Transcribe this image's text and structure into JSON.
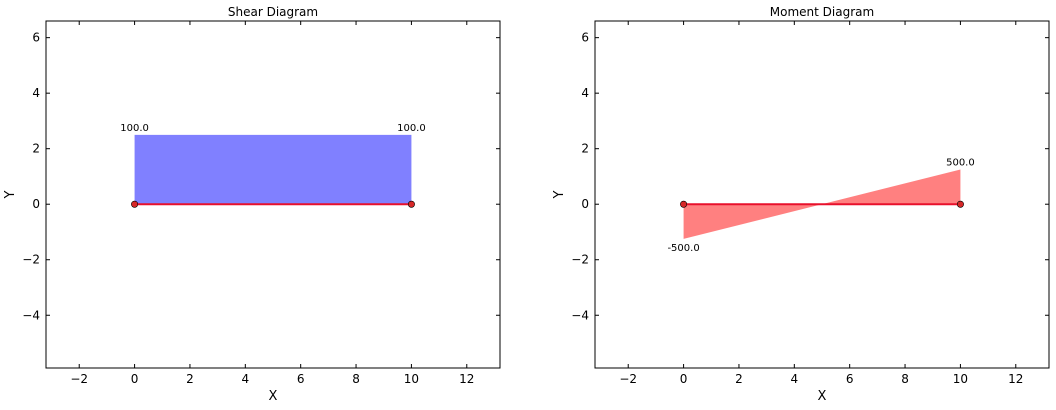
{
  "chart_data": [
    {
      "type": "area",
      "title": "Shear Diagram",
      "xlabel": "X",
      "ylabel": "Y",
      "xlim": [
        -3.2,
        13.2
      ],
      "ylim": [
        -5.9,
        6.6
      ],
      "xticks": [
        -2,
        0,
        2,
        4,
        6,
        8,
        10,
        12
      ],
      "yticks": [
        -4,
        -2,
        0,
        2,
        4,
        6
      ],
      "xtick_labels": [
        "−2",
        "0",
        "2",
        "4",
        "6",
        "8",
        "10",
        "12"
      ],
      "ytick_labels": [
        "−4",
        "−2",
        "0",
        "2",
        "4",
        "6"
      ],
      "grid": false,
      "fill_color": "#8080ff",
      "beam_color": "#e8102c",
      "node_color": "#d62728",
      "beam": {
        "x": [
          0,
          10
        ],
        "y": [
          0,
          0
        ]
      },
      "series": [
        {
          "x": [
            0,
            10
          ],
          "y": [
            2.5,
            2.5
          ]
        }
      ],
      "annotations": [
        {
          "x": 0,
          "y": 2.5,
          "text": "100.0",
          "position": "above"
        },
        {
          "x": 10,
          "y": 2.5,
          "text": "100.0",
          "position": "above"
        }
      ]
    },
    {
      "type": "area",
      "title": "Moment Diagram",
      "xlabel": "X",
      "ylabel": "Y",
      "xlim": [
        -3.2,
        13.2
      ],
      "ylim": [
        -5.9,
        6.6
      ],
      "xticks": [
        -2,
        0,
        2,
        4,
        6,
        8,
        10,
        12
      ],
      "yticks": [
        -4,
        -2,
        0,
        2,
        4,
        6
      ],
      "xtick_labels": [
        "−2",
        "0",
        "2",
        "4",
        "6",
        "8",
        "10",
        "12"
      ],
      "ytick_labels": [
        "−4",
        "−2",
        "0",
        "2",
        "4",
        "6"
      ],
      "grid": false,
      "fill_color": "#ff8080",
      "beam_color": "#e8102c",
      "node_color": "#d62728",
      "beam": {
        "x": [
          0,
          10
        ],
        "y": [
          0,
          0
        ]
      },
      "series": [
        {
          "x": [
            0,
            10
          ],
          "y": [
            -1.25,
            1.25
          ]
        }
      ],
      "annotations": [
        {
          "x": 0,
          "y": -1.25,
          "text": "-500.0",
          "position": "below"
        },
        {
          "x": 10,
          "y": 1.25,
          "text": "500.0",
          "position": "above"
        }
      ]
    }
  ]
}
